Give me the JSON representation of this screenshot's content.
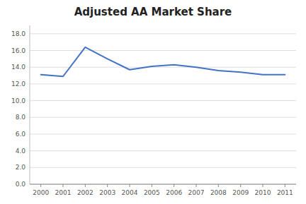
{
  "chart_data": {
    "type": "line",
    "title": "Adjusted AA Market Share",
    "x": [
      2000,
      2001,
      2002,
      2003,
      2004,
      2005,
      2006,
      2007,
      2008,
      2009,
      2010,
      2011
    ],
    "values": [
      13.1,
      12.9,
      16.4,
      15.0,
      13.7,
      14.1,
      14.3,
      14.0,
      13.6,
      13.4,
      13.1,
      13.1
    ],
    "color": "#4472C4",
    "xlim": [
      1999.5,
      2011.5
    ],
    "xticks": [
      2000,
      2001,
      2002,
      2003,
      2004,
      2005,
      2006,
      2007,
      2008,
      2009,
      2010,
      2011
    ],
    "ylim": [
      0,
      19.0
    ],
    "yticks": [
      {
        "value": 0.0,
        "label": "0.0"
      },
      {
        "value": 2.0,
        "label": "2.0"
      },
      {
        "value": 4.0,
        "label": "4.0"
      },
      {
        "value": 6.0,
        "label": "6.0"
      },
      {
        "value": 8.0,
        "label": "8.0"
      },
      {
        "value": 10.0,
        "label": "10.0"
      },
      {
        "value": 12.0,
        "label": "12.0"
      },
      {
        "value": 14.0,
        "label": "14.0"
      },
      {
        "value": 16.0,
        "label": "16.0"
      },
      {
        "value": 18.0,
        "label": "18.0"
      }
    ],
    "grid": true
  }
}
